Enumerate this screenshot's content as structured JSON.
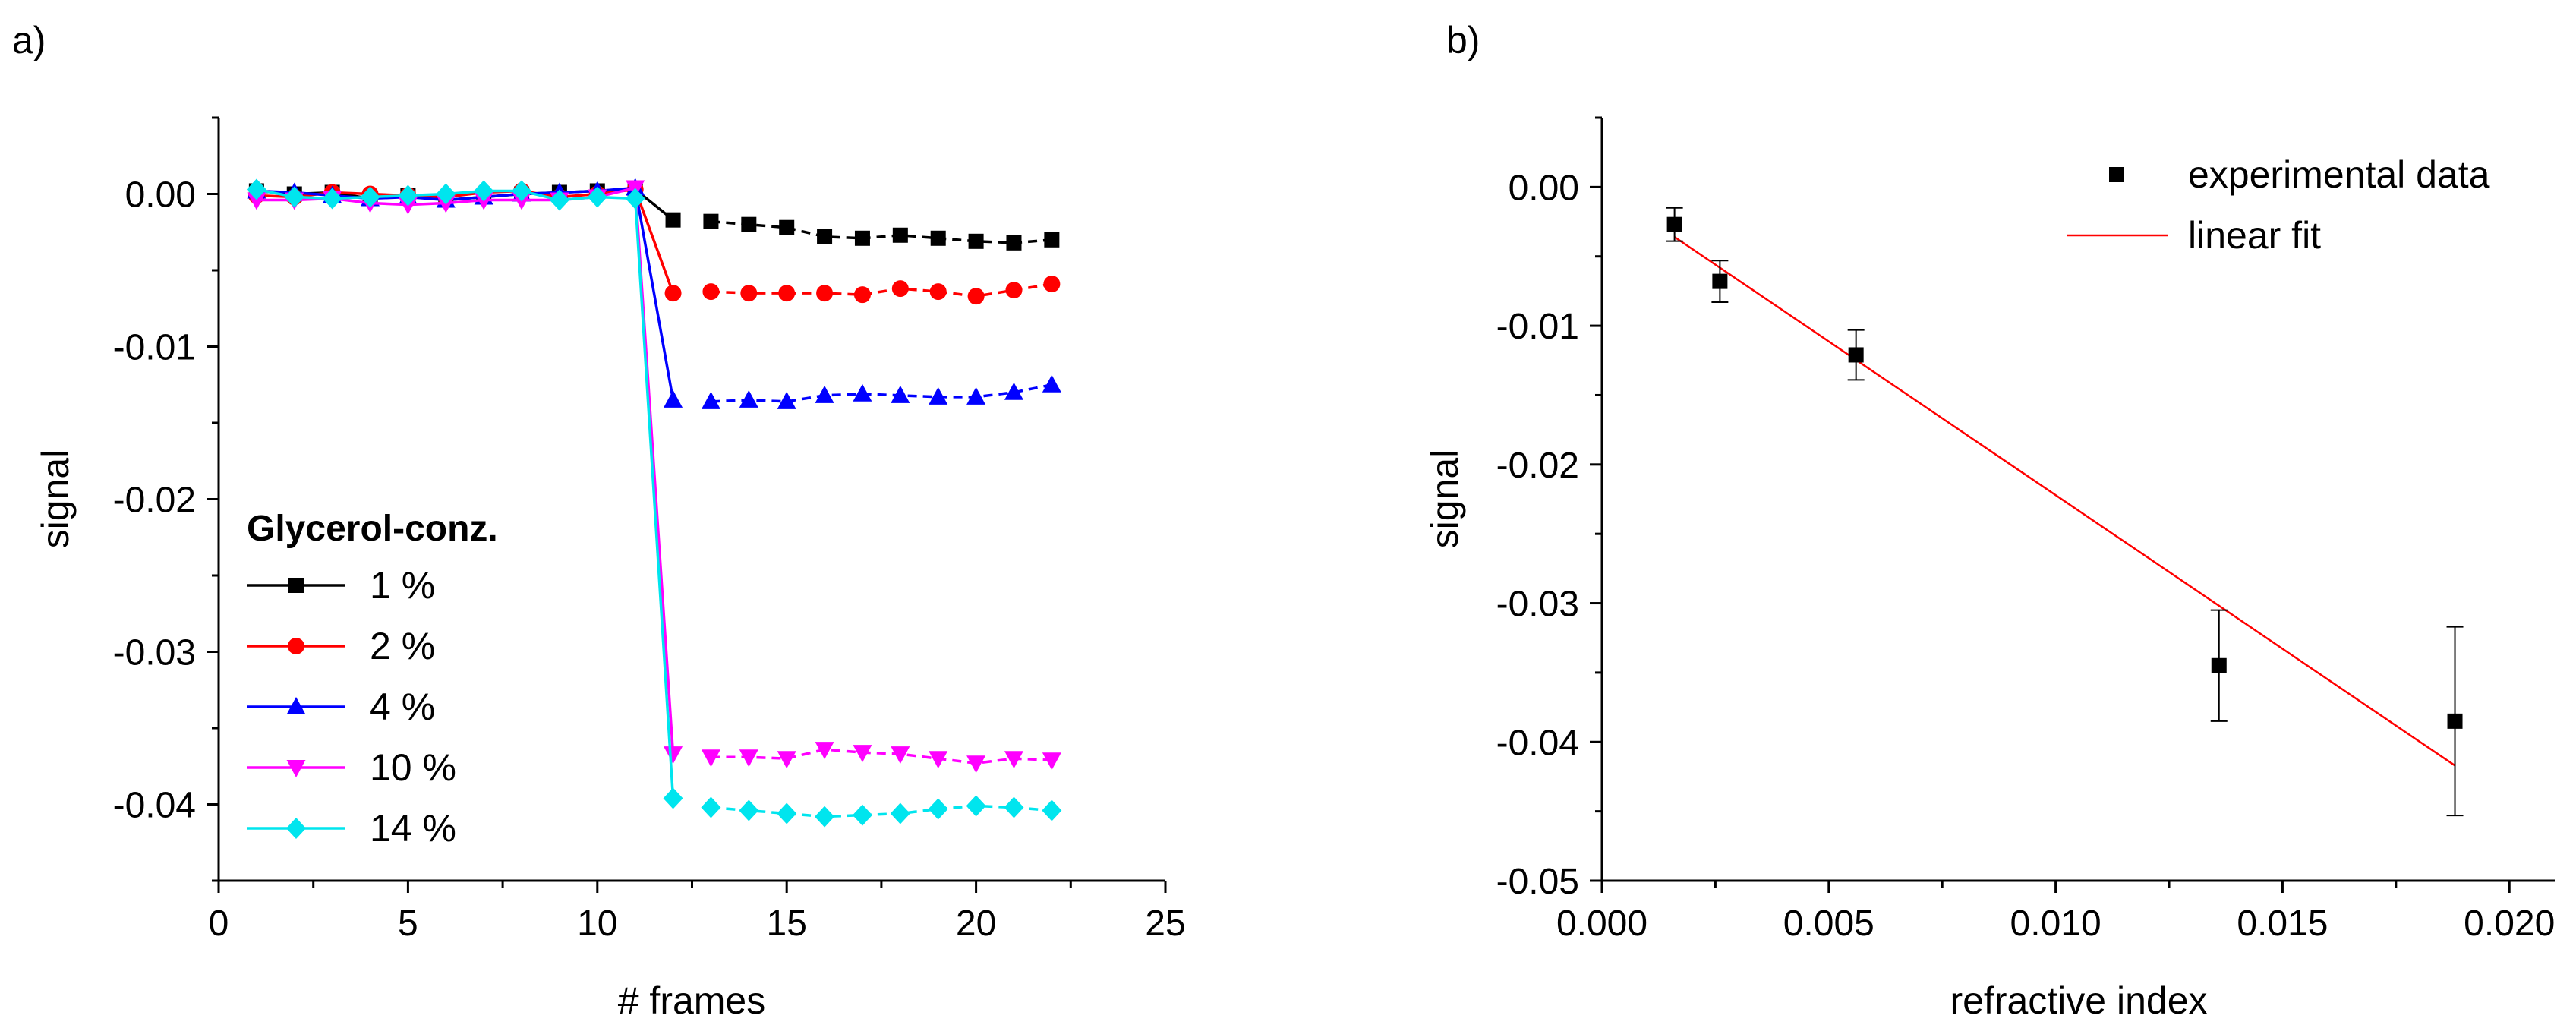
{
  "chart_data": [
    {
      "panel_label": "a)",
      "type": "line",
      "xlabel": "# frames",
      "ylabel": "signal",
      "xlim": [
        0,
        25
      ],
      "ylim": [
        -0.045,
        0.005
      ],
      "xticks": [
        0,
        5,
        10,
        15,
        20,
        25
      ],
      "xtick_labels": [
        "0",
        "5",
        "10",
        "15",
        "20",
        "25"
      ],
      "yticks": [
        0.0,
        -0.01,
        -0.02,
        -0.03,
        -0.04
      ],
      "ytick_labels": [
        "0.00",
        "-0.01",
        "-0.02",
        "-0.03",
        "-0.04"
      ],
      "legend_title": "Glycerol-conz.",
      "legend_position": "bottom-left",
      "x": [
        1,
        2,
        3,
        4,
        5,
        6,
        7,
        8,
        9,
        10,
        11,
        12,
        13,
        14,
        15,
        16,
        17,
        18,
        19,
        20,
        21,
        22
      ],
      "series": [
        {
          "name": "1 %",
          "color": "#000000",
          "marker": "square",
          "values": [
            0.0002,
            0.0,
            0.0001,
            -0.0003,
            -0.0001,
            -0.0004,
            -0.0002,
            0.0,
            0.0001,
            0.0002,
            0.0003,
            -0.0017,
            -0.0018,
            -0.002,
            -0.0022,
            -0.0028,
            -0.0029,
            -0.0027,
            -0.0029,
            -0.0031,
            -0.0032,
            -0.003
          ]
        },
        {
          "name": "2 %",
          "color": "#ff0000",
          "marker": "circle",
          "values": [
            -0.0001,
            -0.0002,
            0.0001,
            0.0,
            -0.0001,
            -0.0002,
            0.0001,
            0.0002,
            -0.0002,
            0.0,
            0.0003,
            -0.0065,
            -0.0064,
            -0.0065,
            -0.0065,
            -0.0065,
            -0.0066,
            -0.0062,
            -0.0064,
            -0.0067,
            -0.0063,
            -0.0059
          ]
        },
        {
          "name": "4 %",
          "color": "#0000ff",
          "marker": "triangle-up",
          "values": [
            0.0002,
            0.0001,
            -0.0001,
            -0.0003,
            -0.0002,
            -0.0004,
            -0.0002,
            0.0,
            0.0001,
            0.0002,
            0.0004,
            -0.0135,
            -0.0136,
            -0.0135,
            -0.0136,
            -0.0132,
            -0.0131,
            -0.0132,
            -0.0133,
            -0.0133,
            -0.013,
            -0.0125
          ]
        },
        {
          "name": "10 %",
          "color": "#ff00ff",
          "marker": "triangle-down",
          "values": [
            -0.0004,
            -0.0004,
            -0.0003,
            -0.0006,
            -0.0007,
            -0.0006,
            -0.0004,
            -0.0004,
            -0.0004,
            -0.0002,
            0.0004,
            -0.0367,
            -0.0369,
            -0.0369,
            -0.037,
            -0.0364,
            -0.0366,
            -0.0367,
            -0.037,
            -0.0373,
            -0.037,
            -0.0371
          ]
        },
        {
          "name": "14 %",
          "color": "#00e5ee",
          "marker": "diamond",
          "values": [
            0.0003,
            -0.0002,
            -0.0003,
            -0.0002,
            -0.0001,
            0.0,
            0.0002,
            0.0002,
            -0.0004,
            -0.0002,
            -0.0003,
            -0.0396,
            -0.0402,
            -0.0404,
            -0.0406,
            -0.0408,
            -0.0407,
            -0.0406,
            -0.0403,
            -0.0401,
            -0.0402,
            -0.0404
          ]
        }
      ]
    },
    {
      "panel_label": "b)",
      "type": "scatter",
      "xlabel": "refractive index",
      "ylabel": "signal",
      "xlim": [
        0.0,
        0.021
      ],
      "ylim": [
        -0.05,
        0.005
      ],
      "xticks": [
        0.0,
        0.005,
        0.01,
        0.015,
        0.02
      ],
      "xtick_labels": [
        "0.000",
        "0.005",
        "0.010",
        "0.015",
        "0.020"
      ],
      "yticks": [
        0.0,
        -0.01,
        -0.02,
        -0.03,
        -0.04,
        -0.05
      ],
      "ytick_labels": [
        "0.00",
        "-0.01",
        "-0.02",
        "-0.03",
        "-0.04",
        "-0.05"
      ],
      "legend_position": "top-right",
      "series": [
        {
          "name": "experimental data",
          "color": "#000000",
          "marker": "square",
          "x": [
            0.0016,
            0.0026,
            0.0056,
            0.0136,
            0.0188
          ],
          "y": [
            -0.0027,
            -0.0068,
            -0.0121,
            -0.0345,
            -0.0385
          ],
          "yerr": [
            0.0012,
            0.0015,
            0.0018,
            0.004,
            0.0068
          ]
        },
        {
          "name": "linear fit",
          "color": "#ff0000",
          "style": "line",
          "x": [
            0.0016,
            0.0188
          ],
          "y": [
            -0.0036,
            -0.0417
          ]
        }
      ]
    }
  ]
}
